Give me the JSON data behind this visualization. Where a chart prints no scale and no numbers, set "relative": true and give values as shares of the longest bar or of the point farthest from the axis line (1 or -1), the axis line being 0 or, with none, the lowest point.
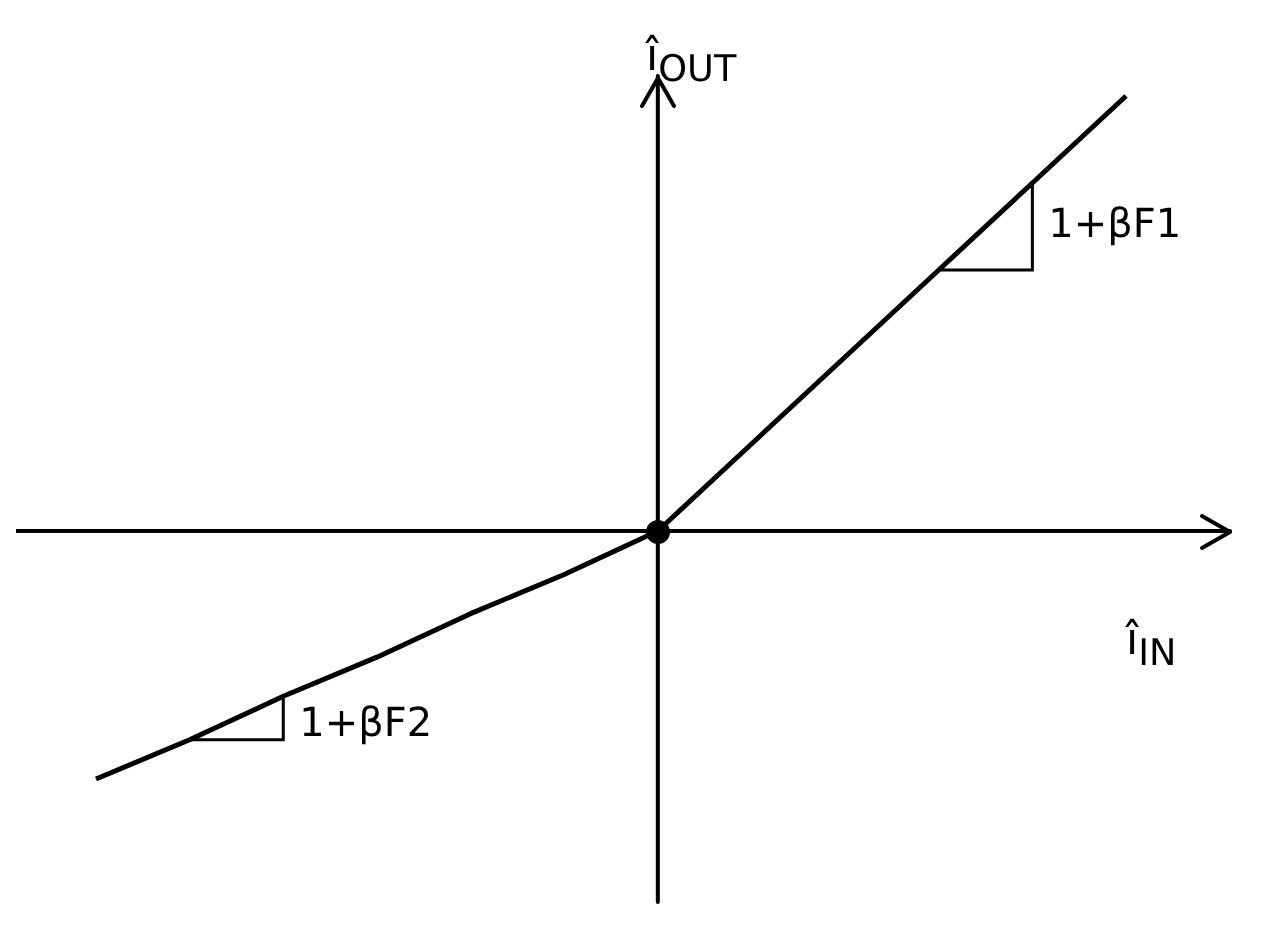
{
  "chart_data": {
    "type": "line",
    "relative": true,
    "xlabel": "î$_{IN}$",
    "ylabel": "î$_{OUT}$",
    "categories": [
      null,
      null,
      null,
      null,
      null,
      null,
      null,
      null,
      null,
      null,
      null,
      null
    ],
    "series": [
      {
        "color": "#000000",
        "values": [
          -0.57,
          -0.48,
          -0.38,
          -0.29,
          -0.19,
          -0.1,
          0,
          0.2,
          0.4,
          0.6,
          0.8,
          1
        ]
      }
    ],
    "annotations": [
      "1+βF1",
      "1+βF2"
    ],
    "legend": false
  }
}
